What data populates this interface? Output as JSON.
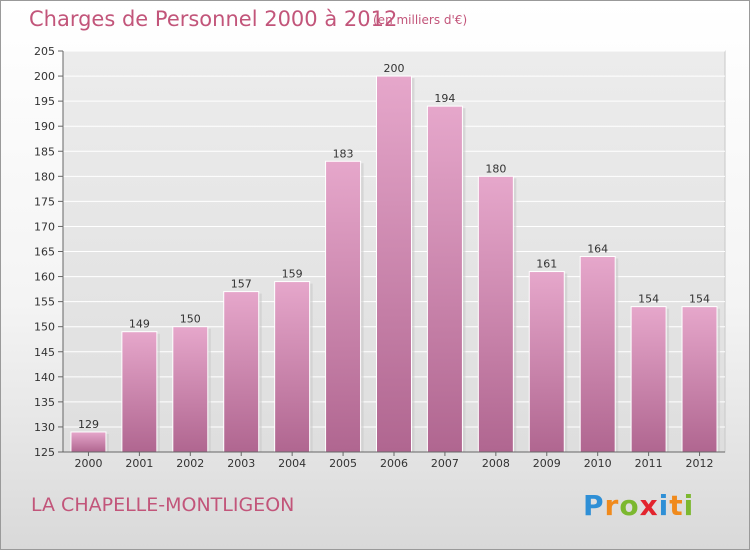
{
  "header": {
    "title": "Charges de Personnel 2000 à 2012",
    "subtitle": "(en milliers d'€)"
  },
  "footer": {
    "commune": "LA CHAPELLE-MONTLIGEON",
    "logo": {
      "letters": [
        "P",
        "r",
        "o",
        "x",
        "i",
        "t",
        "i"
      ],
      "colors": [
        "#2e8fd6",
        "#f08a1c",
        "#7cb82f",
        "#e2242e",
        "#2e8fd6",
        "#f08a1c",
        "#7cb82f"
      ]
    }
  },
  "colors": {
    "accent": "#c2557a",
    "bar_top": "#e6a7cb",
    "bar_bottom": "#b06690"
  },
  "chart_data": {
    "type": "bar",
    "categories": [
      "2000",
      "2001",
      "2002",
      "2003",
      "2004",
      "2005",
      "2006",
      "2007",
      "2008",
      "2009",
      "2010",
      "2011",
      "2012"
    ],
    "values": [
      129,
      149,
      150,
      157,
      159,
      183,
      200,
      194,
      180,
      161,
      164,
      154,
      154
    ],
    "ylim": [
      125,
      205
    ],
    "yticks": [
      125,
      130,
      135,
      140,
      145,
      150,
      155,
      160,
      165,
      170,
      175,
      180,
      185,
      190,
      195,
      200,
      205
    ],
    "grid": true,
    "data_labels": true
  }
}
